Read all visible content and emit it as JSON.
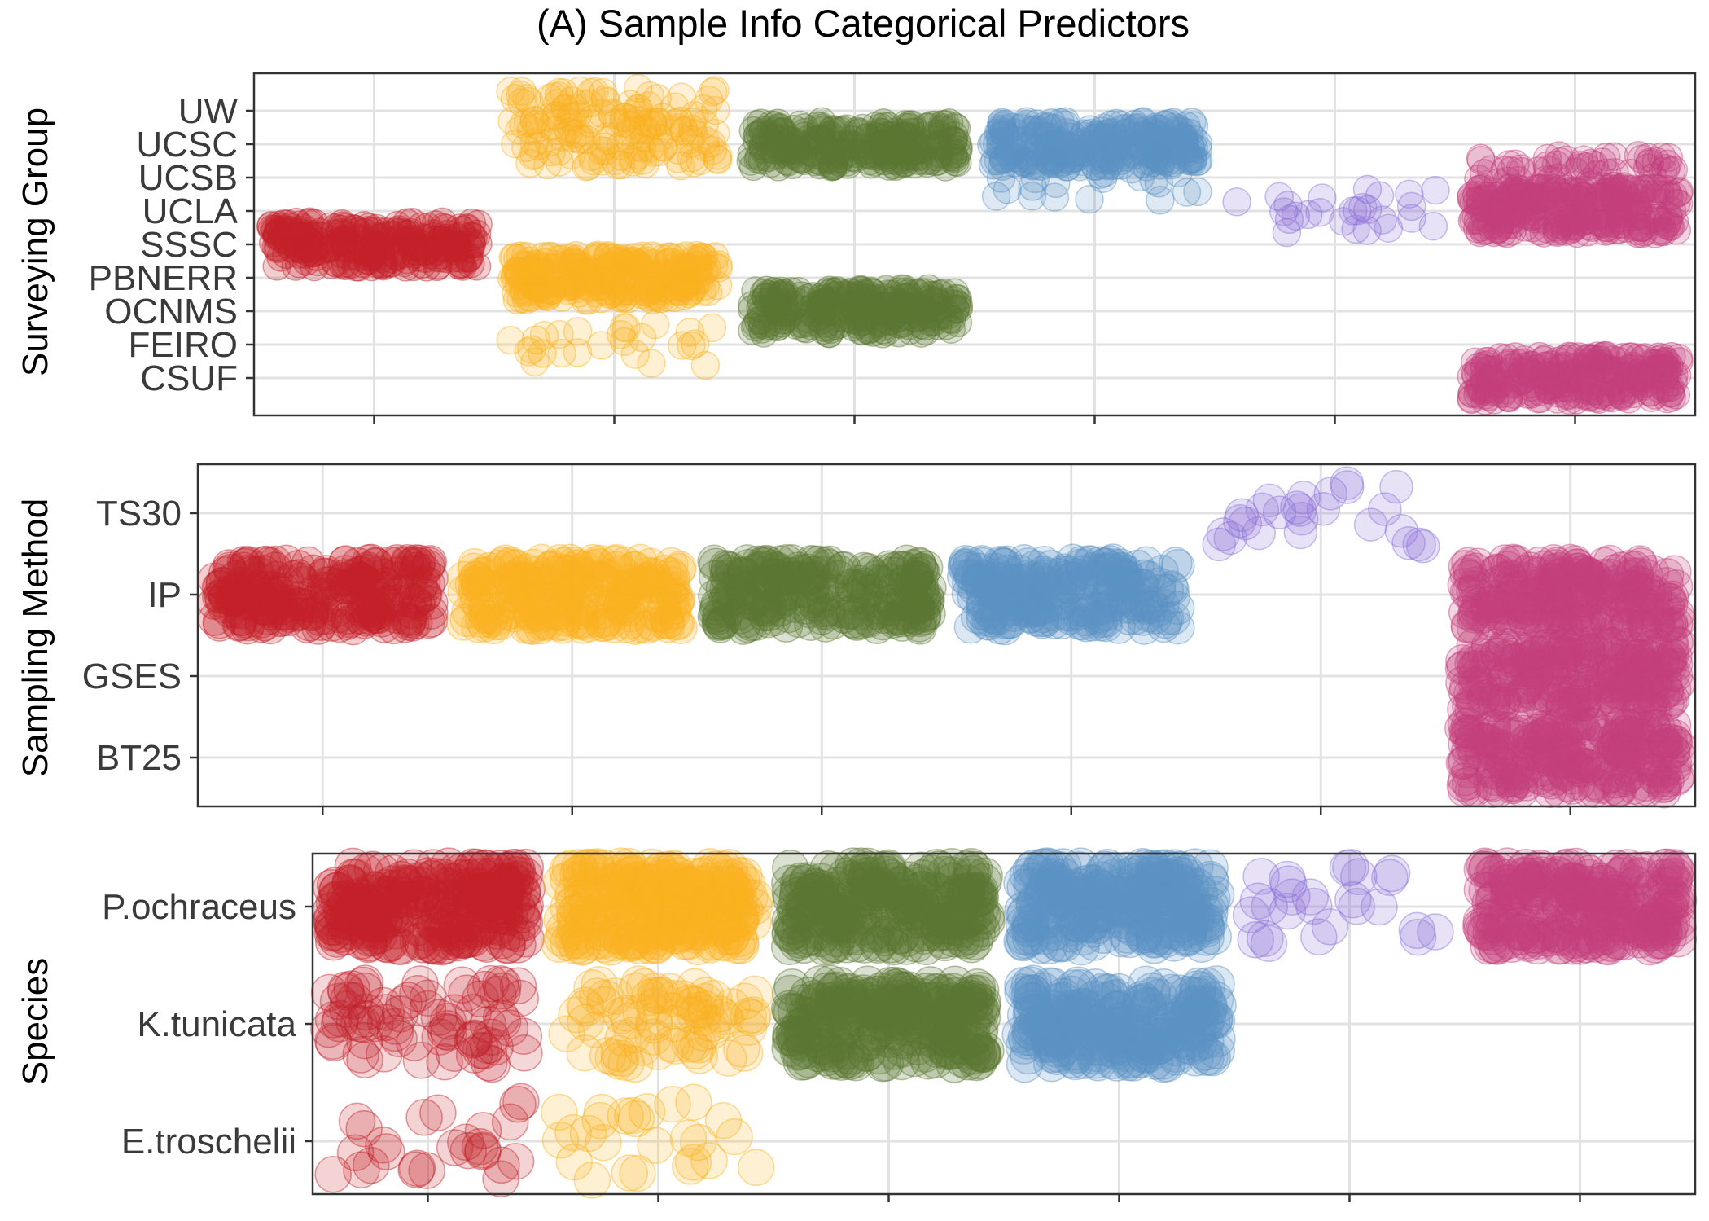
{
  "title": "(A) Sample Info Categorical Predictors",
  "colors": {
    "red": "#c4222a",
    "yellow": "#fbb21f",
    "green": "#5c7731",
    "blue": "#5c93c4",
    "purple": "#8a6fd6",
    "pink": "#c43f7c"
  },
  "chart_data": [
    {
      "type": "scatter",
      "title": "",
      "ylabel": "Surveying Group",
      "categories": [
        "CSUF",
        "FEIRO",
        "OCNMS",
        "PBNERR",
        "SSSC",
        "UCLA",
        "UCSB",
        "UCSC",
        "UW"
      ],
      "x_groups": 6,
      "grid": true,
      "series": [
        {
          "color": "red",
          "points": [
            {
              "category": "SSSC",
              "density": "dense"
            }
          ]
        },
        {
          "color": "yellow",
          "points": [
            {
              "category": "UW",
              "density": "medium"
            },
            {
              "category": "UCSC",
              "density": "medium"
            },
            {
              "category": "PBNERR",
              "density": "dense"
            },
            {
              "category": "FEIRO",
              "density": "sparse"
            }
          ]
        },
        {
          "color": "green",
          "points": [
            {
              "category": "UCSC",
              "density": "dense"
            },
            {
              "category": "OCNMS",
              "density": "dense"
            }
          ]
        },
        {
          "color": "blue",
          "points": [
            {
              "category": "UCSC",
              "density": "dense"
            },
            {
              "category": "UCSB",
              "density": "sparse"
            }
          ]
        },
        {
          "color": "purple",
          "points": [
            {
              "category": "UCLA",
              "density": "sparse"
            }
          ]
        },
        {
          "color": "pink",
          "points": [
            {
              "category": "UCSB",
              "density": "medium"
            },
            {
              "category": "UCLA",
              "density": "dense"
            },
            {
              "category": "CSUF",
              "density": "dense"
            }
          ]
        }
      ]
    },
    {
      "type": "scatter",
      "title": "",
      "ylabel": "Sampling Method",
      "categories": [
        "BT25",
        "GSES",
        "IP",
        "TS30"
      ],
      "x_groups": 6,
      "grid": true,
      "series": [
        {
          "color": "red",
          "points": [
            {
              "category": "IP",
              "density": "dense"
            }
          ]
        },
        {
          "color": "yellow",
          "points": [
            {
              "category": "IP",
              "density": "dense"
            }
          ]
        },
        {
          "color": "green",
          "points": [
            {
              "category": "IP",
              "density": "dense"
            }
          ]
        },
        {
          "color": "blue",
          "points": [
            {
              "category": "IP",
              "density": "dense"
            }
          ]
        },
        {
          "color": "purple",
          "points": [
            {
              "category": "TS30",
              "density": "sparse"
            }
          ]
        },
        {
          "color": "pink",
          "points": [
            {
              "category": "IP",
              "density": "dense"
            },
            {
              "category": "GSES",
              "density": "dense"
            },
            {
              "category": "BT25",
              "density": "dense"
            }
          ]
        }
      ]
    },
    {
      "type": "scatter",
      "title": "",
      "ylabel": "Species",
      "categories": [
        "E.troschelii",
        "K.tunicata",
        "P.ochraceus"
      ],
      "x_groups": 6,
      "grid": true,
      "series": [
        {
          "color": "red",
          "points": [
            {
              "category": "P.ochraceus",
              "density": "dense"
            },
            {
              "category": "K.tunicata",
              "density": "medium"
            },
            {
              "category": "E.troschelii",
              "density": "sparse"
            }
          ]
        },
        {
          "color": "yellow",
          "points": [
            {
              "category": "P.ochraceus",
              "density": "dense"
            },
            {
              "category": "K.tunicata",
              "density": "medium"
            },
            {
              "category": "E.troschelii",
              "density": "sparse"
            }
          ]
        },
        {
          "color": "green",
          "points": [
            {
              "category": "P.ochraceus",
              "density": "dense"
            },
            {
              "category": "K.tunicata",
              "density": "dense"
            }
          ]
        },
        {
          "color": "blue",
          "points": [
            {
              "category": "P.ochraceus",
              "density": "dense"
            },
            {
              "category": "K.tunicata",
              "density": "dense"
            }
          ]
        },
        {
          "color": "purple",
          "points": [
            {
              "category": "P.ochraceus",
              "density": "sparse"
            }
          ]
        },
        {
          "color": "pink",
          "points": [
            {
              "category": "P.ochraceus",
              "density": "dense"
            }
          ]
        }
      ]
    }
  ]
}
